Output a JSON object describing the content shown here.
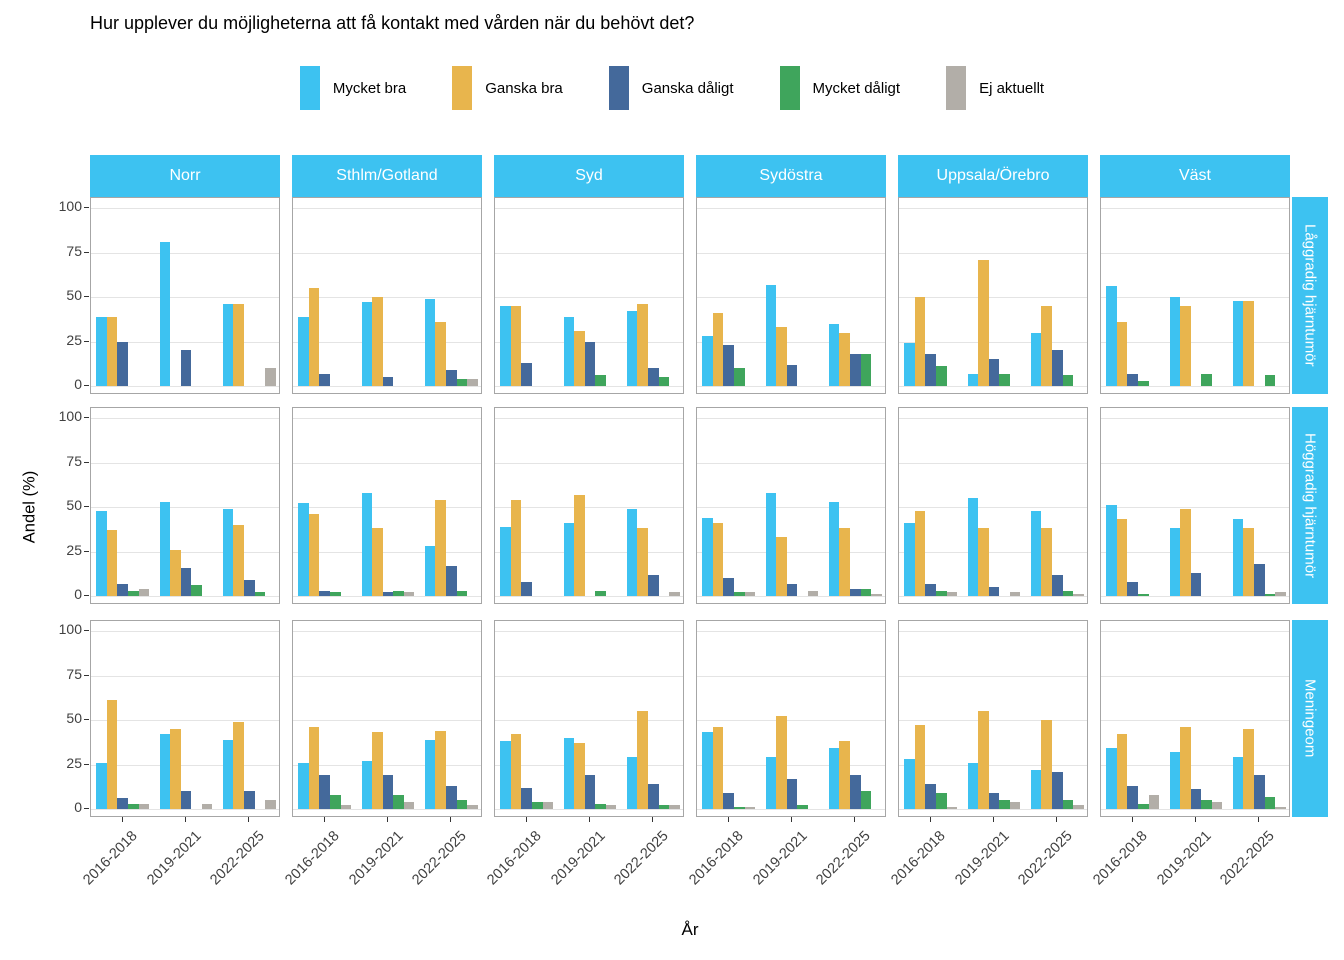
{
  "chart_data": {
    "type": "bar",
    "title": "Hur upplever du möjligheterna att få kontakt med vården när du behövt det?",
    "xlabel": "År",
    "ylabel": "Andel (%)",
    "ylim": [
      0,
      100
    ],
    "yticks": [
      0,
      25,
      50,
      75,
      100
    ],
    "grid": "major-horizontal",
    "legend_position": "top",
    "categories": [
      "2016-2018",
      "2019-2021",
      "2022-2025"
    ],
    "legend": [
      {
        "label": "Mycket bra",
        "color": "#3DC2F1"
      },
      {
        "label": "Ganska bra",
        "color": "#E8B54D"
      },
      {
        "label": "Ganska dåligt",
        "color": "#44699B"
      },
      {
        "label": "Mycket dåligt",
        "color": "#3FA55C"
      },
      {
        "label": "Ej aktuellt",
        "color": "#B2AEA8"
      }
    ],
    "col_facets": [
      "Norr",
      "Sthlm/Gotland",
      "Syd",
      "Sydöstra",
      "Uppsala/Örebro",
      "Väst"
    ],
    "row_facets": [
      "Låggradig hjärntumör",
      "Höggradig hjärntumör",
      "Meningeom"
    ],
    "values_note": "values[row_facet][col_facet][year_period] = [Mycket bra, Ganska bra, Ganska dåligt, Mycket dåligt, Ej aktuellt] in percent",
    "values": [
      [
        [
          [
            39,
            39,
            25,
            0,
            0
          ],
          [
            81,
            0,
            20,
            0,
            0
          ],
          [
            46,
            46,
            0,
            0,
            10
          ]
        ],
        [
          [
            39,
            55,
            7,
            0,
            0
          ],
          [
            47,
            50,
            5,
            0,
            0
          ],
          [
            49,
            36,
            9,
            4,
            4
          ]
        ],
        [
          [
            45,
            45,
            13,
            0,
            0
          ],
          [
            39,
            31,
            25,
            6,
            0
          ],
          [
            42,
            46,
            10,
            5,
            0
          ]
        ],
        [
          [
            28,
            41,
            23,
            10,
            0
          ],
          [
            57,
            33,
            12,
            0,
            0
          ],
          [
            35,
            30,
            18,
            18,
            0
          ]
        ],
        [
          [
            24,
            50,
            18,
            11,
            0
          ],
          [
            7,
            71,
            15,
            7,
            0
          ],
          [
            30,
            45,
            20,
            6,
            0
          ]
        ],
        [
          [
            56,
            36,
            7,
            3,
            0
          ],
          [
            50,
            45,
            0,
            7,
            0
          ],
          [
            48,
            48,
            0,
            6,
            0
          ]
        ]
      ],
      [
        [
          [
            48,
            37,
            7,
            3,
            4
          ],
          [
            53,
            26,
            16,
            6,
            0
          ],
          [
            49,
            40,
            9,
            2,
            0
          ]
        ],
        [
          [
            52,
            46,
            3,
            2,
            0
          ],
          [
            58,
            38,
            2,
            3,
            2
          ],
          [
            28,
            54,
            17,
            3,
            0
          ]
        ],
        [
          [
            39,
            54,
            8,
            0,
            0
          ],
          [
            41,
            57,
            0,
            3,
            0
          ],
          [
            49,
            38,
            12,
            0,
            2
          ]
        ],
        [
          [
            44,
            41,
            10,
            2,
            2
          ],
          [
            58,
            33,
            7,
            0,
            3
          ],
          [
            53,
            38,
            4,
            4,
            1
          ]
        ],
        [
          [
            41,
            48,
            7,
            3,
            2
          ],
          [
            55,
            38,
            5,
            0,
            2
          ],
          [
            48,
            38,
            12,
            3,
            1
          ]
        ],
        [
          [
            51,
            43,
            8,
            1,
            0
          ],
          [
            38,
            49,
            13,
            0,
            0
          ],
          [
            43,
            38,
            18,
            1,
            2
          ]
        ]
      ],
      [
        [
          [
            26,
            61,
            6,
            3,
            3
          ],
          [
            42,
            45,
            10,
            0,
            3
          ],
          [
            39,
            49,
            10,
            0,
            5
          ]
        ],
        [
          [
            26,
            46,
            19,
            8,
            2
          ],
          [
            27,
            43,
            19,
            8,
            4
          ],
          [
            39,
            44,
            13,
            5,
            2
          ]
        ],
        [
          [
            38,
            42,
            12,
            4,
            4
          ],
          [
            40,
            37,
            19,
            3,
            2
          ],
          [
            29,
            55,
            14,
            2,
            2
          ]
        ],
        [
          [
            43,
            46,
            9,
            1,
            1
          ],
          [
            29,
            52,
            17,
            2,
            0
          ],
          [
            34,
            38,
            19,
            10,
            0
          ]
        ],
        [
          [
            28,
            47,
            14,
            9,
            1
          ],
          [
            26,
            55,
            9,
            5,
            4
          ],
          [
            22,
            50,
            21,
            5,
            2
          ]
        ],
        [
          [
            34,
            42,
            13,
            3,
            8
          ],
          [
            32,
            46,
            11,
            5,
            4
          ],
          [
            29,
            45,
            19,
            7,
            1
          ]
        ]
      ]
    ],
    "colors": {
      "strip_background": "#3DC2F1",
      "strip_text": "#ffffff",
      "panel_border": "#A6A6A6",
      "gridline": "#E4E4E4",
      "axis_text": "#404040"
    }
  }
}
